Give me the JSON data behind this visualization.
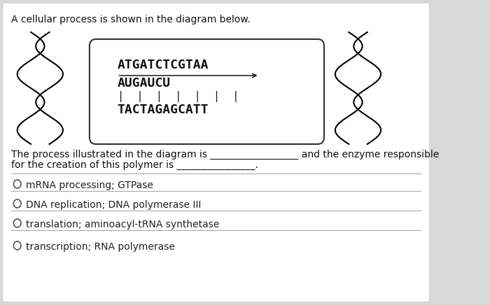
{
  "title": "A cellular process is shown in the diagram below.",
  "bg_color": "#d8d8d8",
  "box_color": "#ffffff",
  "box_edge_color": "#333333",
  "line1": "ATGATCTCGTAA",
  "line2": "AUGAUCU",
  "line3": "TACTAGAGCATT",
  "pipes": "| | | | | | |",
  "question_line1": "The process illustrated in the diagram is __________________ and the enzyme responsible",
  "question_line2": "for the creation of this polymer is ________________.",
  "options": [
    "mRNA processing; GTPase",
    "DNA replication; DNA polymerase III",
    "translation; aminoacyl-tRNA synthetase",
    "transcription; RNA polymerase"
  ],
  "text_color": "#111111",
  "option_text_color": "#222222",
  "divider_color": "#aaaaaa",
  "font_size_title": 10,
  "font_size_box": 12,
  "font_size_question": 10,
  "font_size_options": 10
}
